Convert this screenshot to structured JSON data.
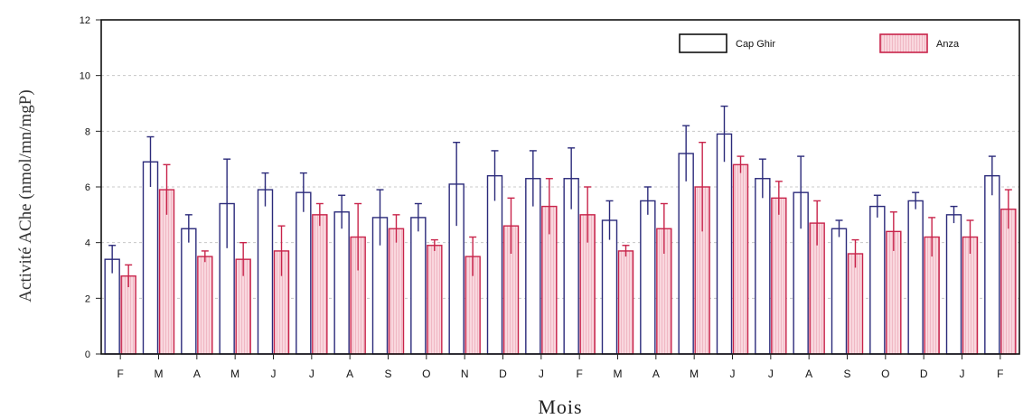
{
  "chart_data": {
    "type": "bar",
    "xlabel": "Mois",
    "ylabel": "Activité AChe (nmol/mn/mgP)",
    "ylim": [
      0,
      12
    ],
    "yticks": [
      "0",
      "2",
      "4",
      "6",
      "8",
      "10",
      "12"
    ],
    "grid": true,
    "legend_position": "top-right",
    "categories": [
      "F",
      "M",
      "A",
      "M",
      "J",
      "J",
      "A",
      "S",
      "O",
      "N",
      "D",
      "J",
      "F",
      "M",
      "A",
      "M",
      "J",
      "J",
      "A",
      "S",
      "O",
      "D",
      "J",
      "F"
    ],
    "series": [
      {
        "name": "Cap Ghir",
        "color": "#2b2a7a",
        "fill": "#ffffff",
        "values": [
          3.4,
          6.9,
          4.5,
          5.4,
          5.9,
          5.8,
          5.1,
          4.9,
          4.9,
          6.1,
          6.4,
          6.3,
          6.3,
          4.8,
          5.5,
          7.2,
          7.9,
          6.3,
          5.8,
          4.5,
          5.3,
          5.5,
          5.0,
          6.4
        ],
        "errors": [
          0.5,
          0.9,
          0.5,
          1.6,
          0.6,
          0.7,
          0.6,
          1.0,
          0.5,
          1.5,
          0.9,
          1.0,
          1.1,
          0.7,
          0.5,
          1.0,
          1.0,
          0.7,
          1.3,
          0.3,
          0.4,
          0.3,
          0.3,
          0.7
        ]
      },
      {
        "name": "Anza",
        "color": "#c8234a",
        "fill": "#f6c6d0",
        "values": [
          2.8,
          5.9,
          3.5,
          3.4,
          3.7,
          5.0,
          4.2,
          4.5,
          3.9,
          3.5,
          4.6,
          5.3,
          5.0,
          3.7,
          4.5,
          6.0,
          6.8,
          5.6,
          4.7,
          3.6,
          4.4,
          4.2,
          4.2,
          5.2
        ],
        "errors": [
          0.4,
          0.9,
          0.2,
          0.6,
          0.9,
          0.4,
          1.2,
          0.5,
          0.2,
          0.7,
          1.0,
          1.0,
          1.0,
          0.2,
          0.9,
          1.6,
          0.3,
          0.6,
          0.8,
          0.5,
          0.7,
          0.7,
          0.6,
          0.7
        ]
      }
    ]
  }
}
